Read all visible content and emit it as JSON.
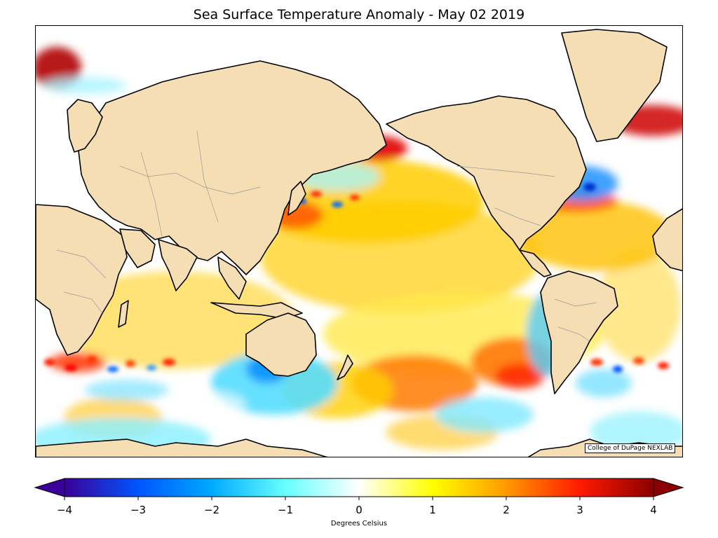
{
  "title": "Sea Surface Temperature Anomaly - May 02 2019",
  "credit": "College of DuPage NEXLAB",
  "colorbar": {
    "label": "Degrees Celsius",
    "min": -4,
    "max": 4,
    "extend": "both",
    "ticks": [
      "−4",
      "−3",
      "−2",
      "−1",
      "0",
      "1",
      "2",
      "3",
      "4"
    ],
    "tick_values": [
      -4,
      -3,
      -2,
      -1,
      0,
      1,
      2,
      3,
      4
    ],
    "color_stops": [
      {
        "value": -4,
        "color": "#3a0099"
      },
      {
        "value": -3,
        "color": "#0055ff"
      },
      {
        "value": -2,
        "color": "#00aaff"
      },
      {
        "value": -1,
        "color": "#66ffff"
      },
      {
        "value": 0,
        "color": "#ffffff"
      },
      {
        "value": 1,
        "color": "#ffff00"
      },
      {
        "value": 2,
        "color": "#ff9900"
      },
      {
        "value": 3,
        "color": "#ff1a00"
      },
      {
        "value": 4,
        "color": "#8b0000"
      }
    ]
  },
  "map": {
    "projection": "cylindrical",
    "land_color": "#f5deb3",
    "coastline_color": "#000000",
    "border_color": "#999999",
    "features": [
      "continents",
      "country-borders",
      "anomaly-field"
    ]
  }
}
